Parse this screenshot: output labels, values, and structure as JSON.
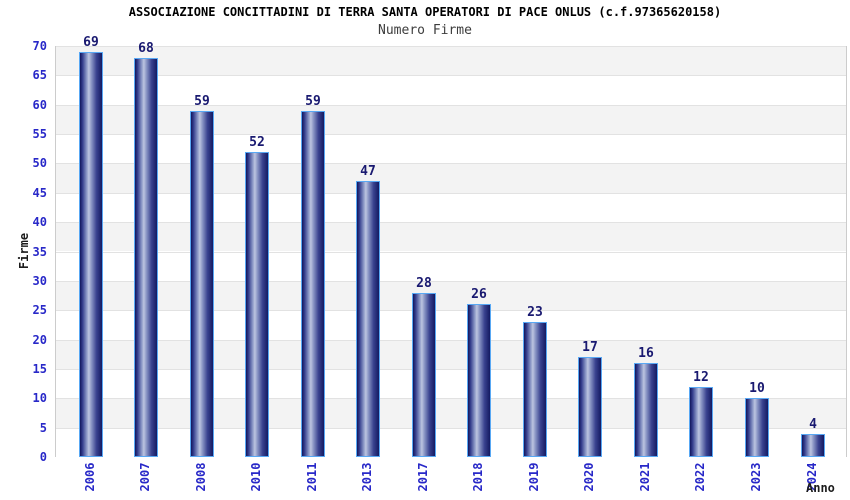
{
  "chart_data": {
    "type": "bar",
    "title": "ASSOCIAZIONE CONCITTADINI DI TERRA SANTA OPERATORI DI PACE ONLUS (c.f.97365620158)",
    "subtitle": "Numero Firme",
    "xlabel": "Anno",
    "ylabel": "Firme",
    "categories": [
      "2006",
      "2007",
      "2008",
      "2010",
      "2011",
      "2013",
      "2017",
      "2018",
      "2019",
      "2020",
      "2021",
      "2022",
      "2023",
      "2024"
    ],
    "values": [
      69,
      68,
      59,
      52,
      59,
      47,
      28,
      26,
      23,
      17,
      16,
      12,
      10,
      4
    ],
    "ylim": [
      0,
      70
    ],
    "ytick_step": 5,
    "grid": "horizontal-bands",
    "legend": "none",
    "colors": {
      "title": "#000000",
      "subtitle": "#3d3d3d",
      "axis_tick": "#2828c8",
      "value_label": "#191970",
      "axis_title": "#1c1c1c",
      "bar_border": "#58a8f4",
      "bar_gradient": [
        "#11155c",
        "#353f8e",
        "#8a96c5",
        "#bcc4e0",
        "#8a96c5",
        "#39428f",
        "#141a62"
      ],
      "band_gray": "#f3f3f3",
      "band_white": "#ffffff",
      "grid_line": "#e2e2e2",
      "plot_border": "#cccccc"
    }
  }
}
